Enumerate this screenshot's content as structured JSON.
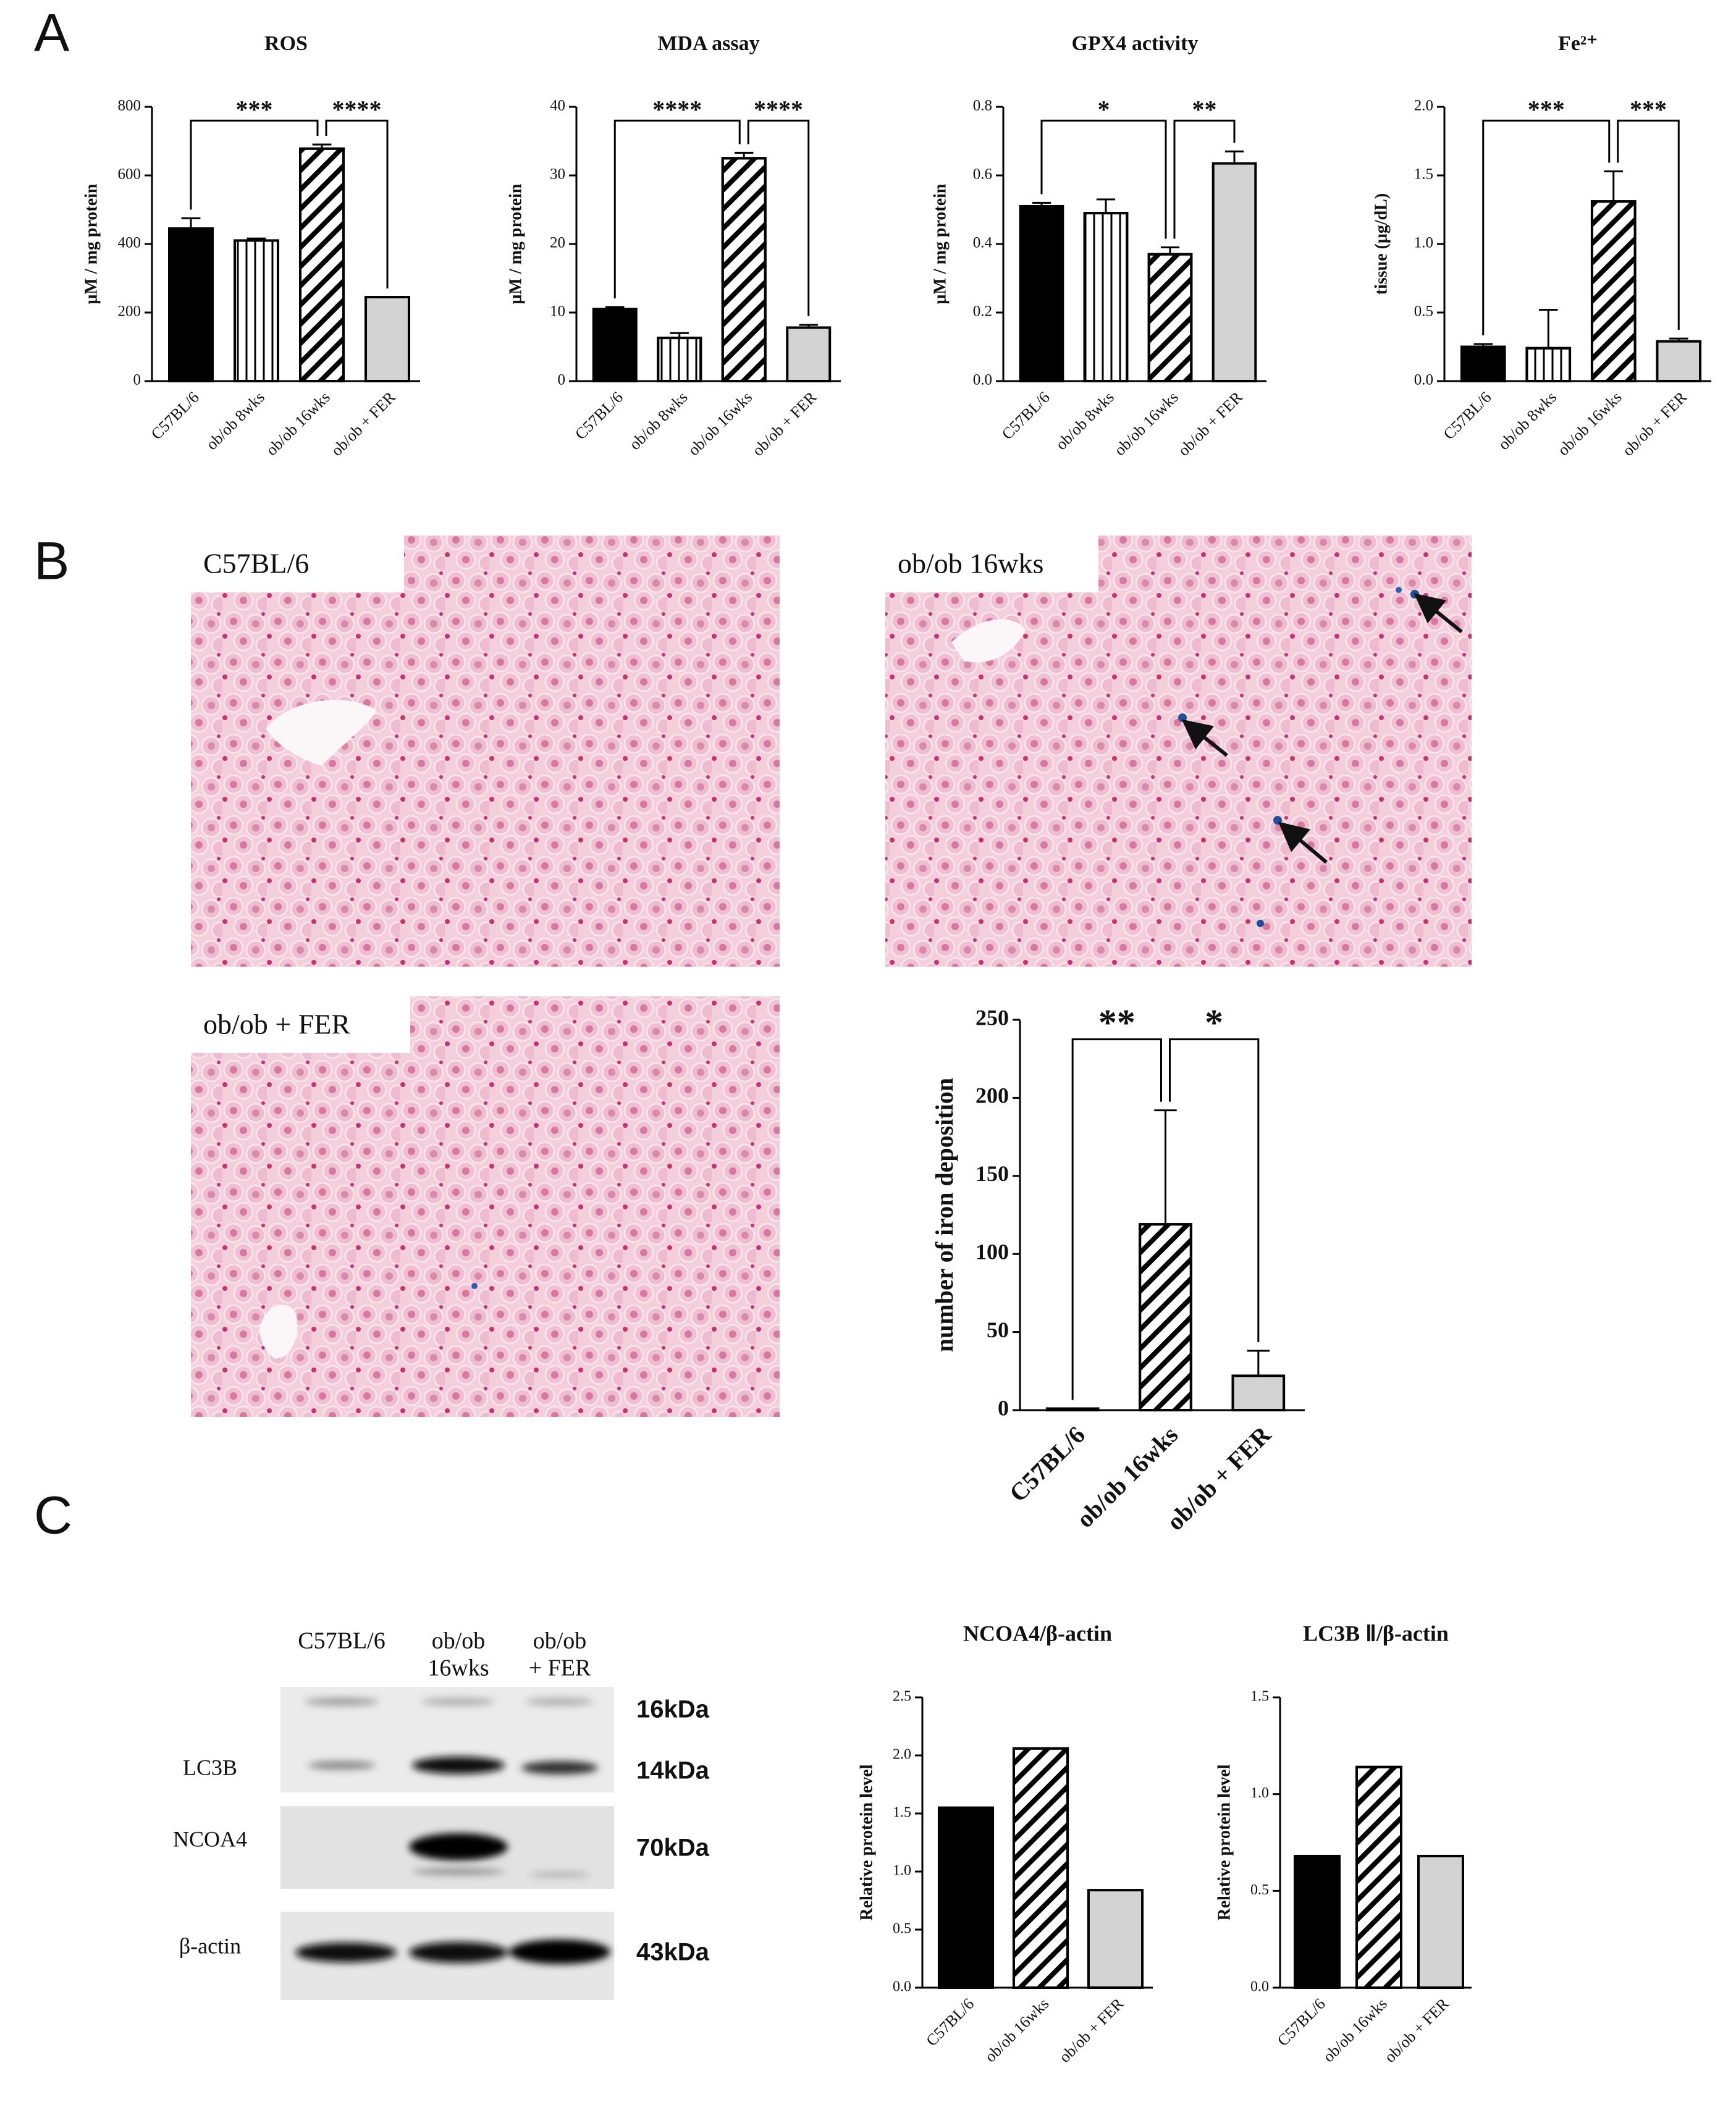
{
  "panels": [
    "A",
    "B",
    "C"
  ],
  "micrographs": [
    "C57BL/6",
    "ob/ob 16wks",
    "ob/ob + FER"
  ],
  "western_blot": {
    "lanes": [
      [
        "C57BL/6"
      ],
      [
        "ob/ob",
        "16wks"
      ],
      [
        "ob/ob",
        "+ FER"
      ]
    ],
    "rows": [
      "LC3B",
      "NCOA4",
      "β-actin"
    ],
    "sizes": [
      "16kDa",
      "14kDa",
      "70kDa",
      "43kDa"
    ]
  },
  "chart_data": [
    {
      "type": "bar",
      "title": "ROS",
      "y_label": "μM / mg protein",
      "categories": [
        "C57BL/6",
        "ob/ob 8wks",
        "ob/ob 16wks",
        "ob/ob + FER"
      ],
      "values": [
        445,
        410,
        678,
        245
      ],
      "errors": [
        30,
        6,
        12,
        0
      ],
      "colors": [
        "#000000",
        "#ffffff",
        "#ffffff",
        "#d3d3d3"
      ],
      "hatch": [
        "none",
        "vertical",
        "diagonal",
        "none"
      ],
      "ylim": [
        0,
        800
      ],
      "yticks": [
        0,
        200,
        400,
        600,
        800
      ],
      "significance": [
        {
          "between": [
            "C57BL/6",
            "ob/ob 16wks"
          ],
          "label": "***"
        },
        {
          "between": [
            "ob/ob 16wks",
            "ob/ob + FER"
          ],
          "label": "****"
        }
      ]
    },
    {
      "type": "bar",
      "title": "MDA assay",
      "y_label": "μM / mg protein",
      "categories": [
        "C57BL/6",
        "ob/ob 8wks",
        "ob/ob 16wks",
        "ob/ob + FER"
      ],
      "values": [
        10.5,
        6.3,
        32.5,
        7.8
      ],
      "errors": [
        0.3,
        0.7,
        0.8,
        0.4
      ],
      "colors": [
        "#000000",
        "#ffffff",
        "#ffffff",
        "#d3d3d3"
      ],
      "hatch": [
        "none",
        "vertical",
        "diagonal",
        "none"
      ],
      "ylim": [
        0,
        40
      ],
      "yticks": [
        0,
        10,
        20,
        30,
        40
      ],
      "significance": [
        {
          "between": [
            "C57BL/6",
            "ob/ob 16wks"
          ],
          "label": "****"
        },
        {
          "between": [
            "ob/ob 16wks",
            "ob/ob + FER"
          ],
          "label": "****"
        }
      ]
    },
    {
      "type": "bar",
      "title": "GPX4 activity",
      "y_label": "μM / mg protein",
      "categories": [
        "C57BL/6",
        "ob/ob 8wks",
        "ob/ob 16wks",
        "ob/ob + FER"
      ],
      "values": [
        0.51,
        0.49,
        0.37,
        0.635
      ],
      "errors": [
        0.01,
        0.04,
        0.02,
        0.035
      ],
      "colors": [
        "#000000",
        "#ffffff",
        "#ffffff",
        "#d3d3d3"
      ],
      "hatch": [
        "none",
        "vertical",
        "diagonal",
        "none"
      ],
      "ylim": [
        0,
        0.8
      ],
      "yticks": [
        {
          "value": 0,
          "label": "0.0"
        },
        0.2,
        0.4,
        0.6,
        0.8
      ],
      "significance": [
        {
          "between": [
            "C57BL/6",
            "ob/ob 16wks"
          ],
          "label": "*"
        },
        {
          "between": [
            "ob/ob 16wks",
            "ob/ob + FER"
          ],
          "label": "**"
        }
      ]
    },
    {
      "type": "bar",
      "title": "Fe²⁺",
      "y_label": "tissue (μg/dL)",
      "categories": [
        "C57BL/6",
        "ob/ob 8wks",
        "ob/ob 16wks",
        "ob/ob + FER"
      ],
      "values": [
        0.25,
        0.24,
        1.31,
        0.29
      ],
      "errors": [
        0.02,
        0.28,
        0.22,
        0.02
      ],
      "colors": [
        "#000000",
        "#ffffff",
        "#ffffff",
        "#d3d3d3"
      ],
      "hatch": [
        "none",
        "vertical",
        "diagonal",
        "none"
      ],
      "ylim": [
        0,
        2
      ],
      "yticks": [
        {
          "value": 0,
          "label": "0.0"
        },
        0.5,
        {
          "value": 1,
          "label": "1.0"
        },
        1.5,
        {
          "value": 2,
          "label": "2.0"
        }
      ],
      "significance": [
        {
          "between": [
            "C57BL/6",
            "ob/ob 16wks"
          ],
          "label": "***"
        },
        {
          "between": [
            "ob/ob 16wks",
            "ob/ob + FER"
          ],
          "label": "***"
        }
      ]
    },
    {
      "type": "bar",
      "y_label": "number of iron deposition",
      "categories": [
        "C57BL/6",
        "ob/ob 16wks",
        "ob/ob + FER"
      ],
      "values": [
        1,
        119,
        22
      ],
      "errors": [
        0,
        73,
        16
      ],
      "colors": [
        "#000000",
        "#ffffff",
        "#d3d3d3"
      ],
      "hatch": [
        "none",
        "diagonal",
        "none"
      ],
      "ylim": [
        0,
        250
      ],
      "yticks": [
        0,
        50,
        100,
        150,
        200,
        250
      ],
      "significance": [
        {
          "between": [
            "C57BL/6",
            "ob/ob 16wks"
          ],
          "label": "**"
        },
        {
          "between": [
            "ob/ob 16wks",
            "ob/ob + FER"
          ],
          "label": "*"
        }
      ]
    },
    {
      "type": "bar",
      "title": "NCOA4/β-actin",
      "y_label": "Relative protein level",
      "categories": [
        "C57BL/6",
        "ob/ob 16wks",
        "ob/ob + FER"
      ],
      "values": [
        1.55,
        2.06,
        0.84
      ],
      "colors": [
        "#000000",
        "#ffffff",
        "#d3d3d3"
      ],
      "hatch": [
        "none",
        "diagonal",
        "none"
      ],
      "ylim": [
        0,
        2.5
      ],
      "yticks": [
        {
          "value": 0,
          "label": "0.0"
        },
        0.5,
        {
          "value": 1,
          "label": "1.0"
        },
        1.5,
        {
          "value": 2,
          "label": "2.0"
        },
        2.5
      ]
    },
    {
      "type": "bar",
      "title": "LC3B Ⅱ/β-actin",
      "y_label": "Relative protein level",
      "categories": [
        "C57BL/6",
        "ob/ob 16wks",
        "ob/ob + FER"
      ],
      "values": [
        0.68,
        1.14,
        0.68
      ],
      "colors": [
        "#000000",
        "#ffffff",
        "#d3d3d3"
      ],
      "hatch": [
        "none",
        "diagonal",
        "none"
      ],
      "ylim": [
        0,
        1.5
      ],
      "yticks": [
        {
          "value": 0,
          "label": "0.0"
        },
        0.5,
        {
          "value": 1,
          "label": "1.0"
        },
        1.5
      ]
    }
  ]
}
